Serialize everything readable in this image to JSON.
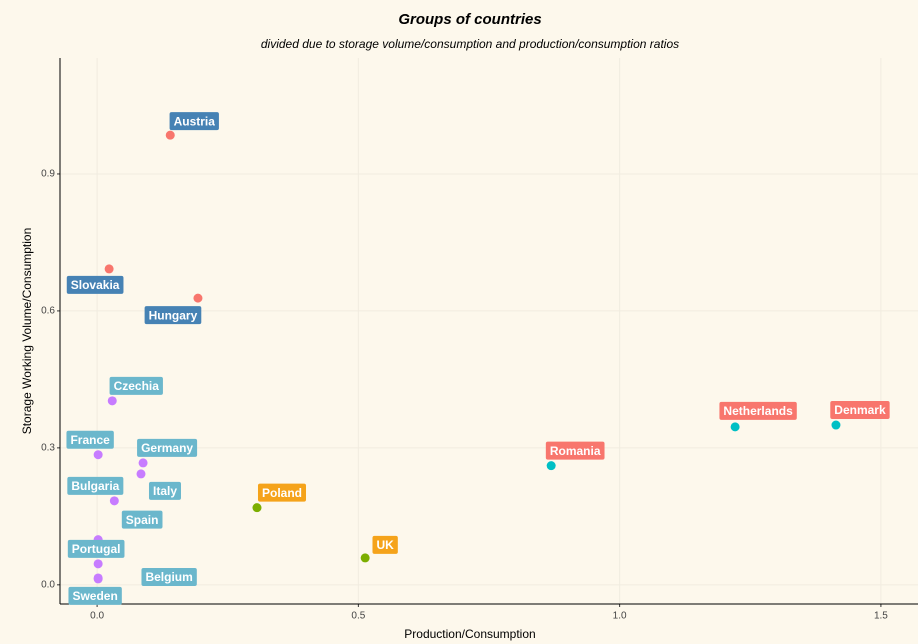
{
  "chart_data": {
    "type": "scatter",
    "title": "Groups of countries",
    "subtitle": "divided due to storage volume/consumption and production/consumption ratios",
    "x_label": "Production/Consumption",
    "y_label": "Storage Working Volume/Consumption",
    "xlim": [
      -0.071,
      1.571
    ],
    "ylim": [
      -0.042,
      1.154
    ],
    "xticks": [
      {
        "value": 0,
        "label": "0.0"
      },
      0.5,
      {
        "value": 1,
        "label": "1.0"
      },
      1.5
    ],
    "yticks": [
      {
        "value": 0,
        "label": "0.0"
      },
      0.3,
      0.6,
      0.9
    ],
    "grid": true,
    "points": [
      {
        "name": "Austria",
        "x": 0.14,
        "y": 0.985,
        "color": "#F8766D",
        "label_color": "#4682B4"
      },
      {
        "name": "Slovakia",
        "x": 0.023,
        "y": 0.692,
        "color": "#F8766D",
        "label_color": "#4682B4"
      },
      {
        "name": "Hungary",
        "x": 0.193,
        "y": 0.628,
        "color": "#F8766D",
        "label_color": "#4682B4"
      },
      {
        "name": "Czechia",
        "x": 0.029,
        "y": 0.403,
        "color": "#C77CFF",
        "label_color": "#6BB7CC"
      },
      {
        "name": "France",
        "x": 0.002,
        "y": 0.285,
        "color": "#C77CFF",
        "label_color": "#6BB7CC"
      },
      {
        "name": "Germany",
        "x": 0.088,
        "y": 0.267,
        "color": "#C77CFF",
        "label_color": "#6BB7CC"
      },
      {
        "name": "Italy",
        "x": 0.084,
        "y": 0.243,
        "color": "#C77CFF",
        "label_color": "#6BB7CC"
      },
      {
        "name": "Bulgaria",
        "x": 0.033,
        "y": 0.184,
        "color": "#C77CFF",
        "label_color": "#6BB7CC"
      },
      {
        "name": "Spain",
        "x": 0.002,
        "y": 0.099,
        "color": "#C77CFF",
        "label_color": "#6BB7CC"
      },
      {
        "name": "Portugal",
        "x": 0.002,
        "y": 0.046,
        "color": "#C77CFF",
        "label_color": "#6BB7CC"
      },
      {
        "name": "Belgium",
        "x": 0.002,
        "y": 0.015,
        "color": "#C77CFF",
        "label_color": "#6BB7CC"
      },
      {
        "name": "Sweden",
        "x": 0.002,
        "y": 0.013,
        "color": "#C77CFF",
        "label_color": "#6BB7CC"
      },
      {
        "name": "Poland",
        "x": 0.306,
        "y": 0.169,
        "color": "#7CAE00",
        "label_color": "#F5A31A"
      },
      {
        "name": "UK",
        "x": 0.513,
        "y": 0.059,
        "color": "#7CAE00",
        "label_color": "#F5A31A"
      },
      {
        "name": "Romania",
        "x": 0.869,
        "y": 0.261,
        "color": "#00BFC4",
        "label_color": "#F8766D"
      },
      {
        "name": "Netherlands",
        "x": 1.221,
        "y": 0.346,
        "color": "#00BFC4",
        "label_color": "#F8766D"
      },
      {
        "name": "Denmark",
        "x": 1.414,
        "y": 0.35,
        "color": "#00BFC4",
        "label_color": "#F8766D"
      }
    ]
  }
}
